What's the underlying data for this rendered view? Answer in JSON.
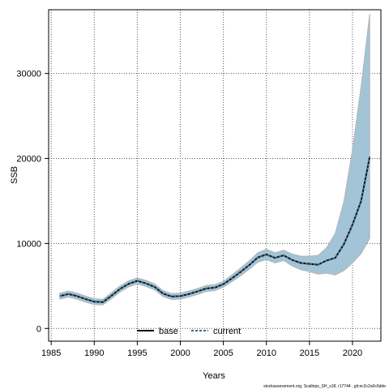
{
  "chart_data": {
    "type": "line",
    "xlabel": "Years",
    "ylabel": "SSB",
    "xlim": [
      1984.7,
      2023.3
    ],
    "ylim": [
      -1500,
      37500
    ],
    "x_ticks": [
      1985,
      1990,
      1995,
      2000,
      2005,
      2010,
      2015,
      2020
    ],
    "y_ticks": [
      0,
      10000,
      20000,
      30000
    ],
    "x_tick_labels": [
      "1985",
      "1990",
      "1995",
      "2000",
      "2005",
      "2010",
      "2015",
      "2020"
    ],
    "y_tick_labels": [
      "0",
      "10000",
      "20000",
      "30000"
    ],
    "grid": true,
    "legend_position": "bottom-center",
    "x": [
      1986,
      1987,
      1988,
      1989,
      1990,
      1991,
      1992,
      1993,
      1994,
      1995,
      1996,
      1997,
      1998,
      1999,
      2000,
      2001,
      2002,
      2003,
      2004,
      2005,
      2006,
      2007,
      2008,
      2009,
      2010,
      2011,
      2012,
      2013,
      2014,
      2015,
      2016,
      2017,
      2018,
      2019,
      2020,
      2021,
      2022
    ],
    "series": [
      {
        "name": "base",
        "line_style": "solid",
        "color": "#000000",
        "values": [
          3800,
          4050,
          3800,
          3450,
          3150,
          3100,
          3850,
          4650,
          5250,
          5600,
          5300,
          4900,
          4100,
          3750,
          3800,
          4050,
          4350,
          4700,
          4800,
          5200,
          5900,
          6650,
          7450,
          8350,
          8700,
          8300,
          8600,
          8050,
          7700,
          7600,
          7500,
          8000,
          8300,
          9900,
          12200,
          15000,
          20200
        ],
        "band_lower": [
          3450,
          3700,
          3450,
          3100,
          2800,
          2780,
          3500,
          4300,
          4900,
          5250,
          4950,
          4550,
          3750,
          3400,
          3450,
          3700,
          4000,
          4350,
          4450,
          4850,
          5500,
          6200,
          6950,
          7800,
          8100,
          7700,
          8000,
          7350,
          6900,
          6700,
          6400,
          6500,
          6300,
          6800,
          7700,
          8800,
          10600
        ],
        "band_upper": [
          4150,
          4400,
          4150,
          3800,
          3500,
          3420,
          4200,
          5000,
          5600,
          5950,
          5650,
          5250,
          4450,
          4100,
          4150,
          4400,
          4700,
          5050,
          5150,
          5550,
          6300,
          7100,
          7950,
          8900,
          9300,
          8900,
          9200,
          8750,
          8500,
          8500,
          8600,
          9500,
          11200,
          14900,
          21000,
          28500,
          37000
        ],
        "band_color": "#a3c4d6",
        "band_edge_color": "#b4b4b4"
      },
      {
        "name": "current",
        "line_style": "dashed",
        "color": "#3e6b82",
        "values": [
          3800,
          4050,
          3800,
          3450,
          3150,
          3100,
          3850,
          4650,
          5250,
          5600,
          5300,
          4900,
          4100,
          3750,
          3800,
          4050,
          4350,
          4700,
          4800,
          5200,
          5900,
          6650,
          7450,
          8350,
          8700,
          8300,
          8600,
          8050,
          7700,
          7600,
          7500,
          8000,
          8300,
          9900,
          12200,
          15000,
          20200
        ]
      }
    ]
  },
  "footnote": "stockassessment.org, Scallops_SH_s18, r17744 , git:ec2c2a0c6dde"
}
